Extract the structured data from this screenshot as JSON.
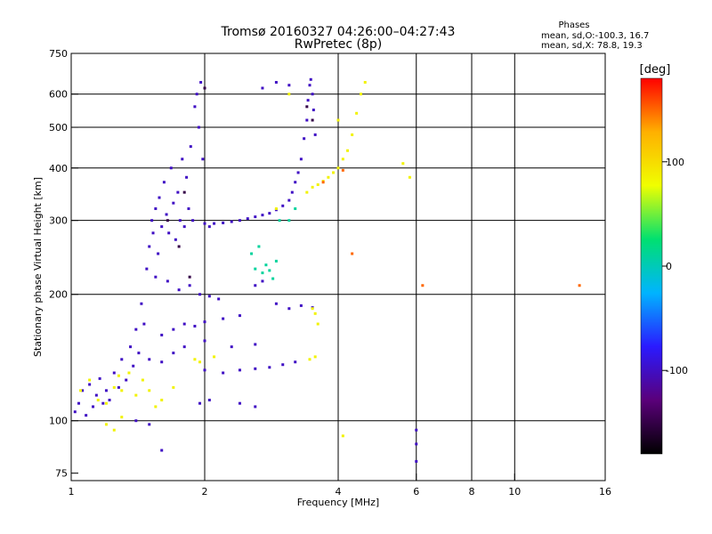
{
  "chart_data": {
    "type": "scatter",
    "title": "Tromsø 20160327 04:26:00–04:27:43",
    "subtitle": "RwPretec (8p)",
    "xlabel": "Frequency [MHz]",
    "ylabel": "Stationary phase Virtual Height [km]",
    "x_scale": "log",
    "y_scale": "log",
    "xlim": [
      1,
      16
    ],
    "ylim": [
      72,
      750
    ],
    "x_ticks": [
      1,
      2,
      4,
      6,
      8,
      10,
      16
    ],
    "y_ticks": [
      75,
      100,
      200,
      300,
      400,
      500,
      600,
      750
    ],
    "grid_x": [
      2,
      4,
      6,
      8,
      10
    ],
    "grid_y": [
      100,
      200,
      300,
      400,
      500,
      600
    ],
    "grid": true,
    "legend": {
      "heading": "Phases",
      "lines": [
        "mean, sd,O:-100.3, 16.7",
        "mean, sd,X:  78.8, 19.3"
      ]
    },
    "colorbar": {
      "label": "[deg]",
      "range": [
        -180,
        180
      ],
      "ticks": [
        100,
        0,
        -100
      ],
      "colors": [
        "#000000",
        "#5a007a",
        "#2a1aff",
        "#00b4ff",
        "#00e070",
        "#f0ff00",
        "#ffb000",
        "#ff0000"
      ]
    },
    "series": [
      {
        "color_deg": -100,
        "points": [
          [
            1.02,
            105
          ],
          [
            1.04,
            110
          ],
          [
            1.06,
            118
          ],
          [
            1.08,
            103
          ],
          [
            1.1,
            122
          ],
          [
            1.12,
            108
          ],
          [
            1.14,
            115
          ],
          [
            1.16,
            126
          ],
          [
            1.18,
            110
          ],
          [
            1.2,
            118
          ],
          [
            1.22,
            112
          ],
          [
            1.25,
            130
          ],
          [
            1.28,
            120
          ],
          [
            1.3,
            140
          ],
          [
            1.33,
            125
          ],
          [
            1.36,
            150
          ],
          [
            1.38,
            135
          ],
          [
            1.4,
            165
          ],
          [
            1.42,
            145
          ],
          [
            1.44,
            190
          ],
          [
            1.46,
            170
          ],
          [
            1.48,
            230
          ],
          [
            1.5,
            260
          ],
          [
            1.52,
            300
          ],
          [
            1.53,
            280
          ],
          [
            1.55,
            320
          ],
          [
            1.57,
            250
          ],
          [
            1.58,
            340
          ],
          [
            1.6,
            290
          ],
          [
            1.62,
            370
          ],
          [
            1.64,
            310
          ],
          [
            1.66,
            280
          ],
          [
            1.68,
            400
          ],
          [
            1.7,
            330
          ],
          [
            1.72,
            270
          ],
          [
            1.74,
            350
          ],
          [
            1.76,
            300
          ],
          [
            1.78,
            420
          ],
          [
            1.8,
            290
          ],
          [
            1.82,
            380
          ],
          [
            1.84,
            320
          ],
          [
            1.86,
            450
          ],
          [
            1.88,
            300
          ],
          [
            1.9,
            560
          ],
          [
            1.92,
            600
          ],
          [
            1.94,
            500
          ],
          [
            1.96,
            640
          ],
          [
            1.98,
            420
          ],
          [
            2.0,
            295
          ],
          [
            2.05,
            290
          ],
          [
            2.1,
            295
          ],
          [
            2.2,
            296
          ],
          [
            2.3,
            298
          ],
          [
            2.4,
            300
          ],
          [
            2.5,
            303
          ],
          [
            2.6,
            306
          ],
          [
            2.7,
            309
          ],
          [
            2.8,
            312
          ],
          [
            2.9,
            318
          ],
          [
            3.0,
            325
          ],
          [
            3.1,
            335
          ],
          [
            3.15,
            350
          ],
          [
            3.2,
            370
          ],
          [
            3.25,
            390
          ],
          [
            3.3,
            420
          ],
          [
            3.35,
            470
          ],
          [
            3.4,
            520
          ],
          [
            3.42,
            580
          ],
          [
            3.45,
            630
          ],
          [
            3.47,
            650
          ],
          [
            3.5,
            600
          ],
          [
            3.52,
            550
          ],
          [
            3.55,
            480
          ],
          [
            1.55,
            220
          ],
          [
            1.65,
            215
          ],
          [
            1.75,
            205
          ],
          [
            1.85,
            210
          ],
          [
            1.95,
            200
          ],
          [
            2.05,
            198
          ],
          [
            2.15,
            195
          ],
          [
            1.6,
            160
          ],
          [
            1.7,
            165
          ],
          [
            1.8,
            170
          ],
          [
            1.9,
            168
          ],
          [
            2.0,
            172
          ],
          [
            2.2,
            175
          ],
          [
            2.4,
            178
          ],
          [
            1.5,
            140
          ],
          [
            1.6,
            138
          ],
          [
            1.7,
            145
          ],
          [
            1.8,
            150
          ],
          [
            2.0,
            155
          ],
          [
            2.3,
            150
          ],
          [
            2.6,
            152
          ],
          [
            2.0,
            132
          ],
          [
            2.2,
            130
          ],
          [
            2.4,
            132
          ],
          [
            2.6,
            133
          ],
          [
            2.8,
            134
          ],
          [
            3.0,
            136
          ],
          [
            3.2,
            138
          ],
          [
            2.9,
            190
          ],
          [
            3.1,
            185
          ],
          [
            3.3,
            188
          ],
          [
            3.5,
            186
          ],
          [
            2.6,
            210
          ],
          [
            2.7,
            215
          ],
          [
            1.4,
            100
          ],
          [
            1.5,
            98
          ],
          [
            1.95,
            110
          ],
          [
            2.05,
            112
          ],
          [
            2.4,
            110
          ],
          [
            2.6,
            108
          ],
          [
            1.6,
            85
          ],
          [
            6.0,
            80
          ],
          [
            6.0,
            88
          ],
          [
            6.0,
            95
          ],
          [
            2.7,
            620
          ],
          [
            2.9,
            640
          ],
          [
            3.1,
            630
          ]
        ]
      },
      {
        "color_deg": 85,
        "points": [
          [
            1.05,
            118
          ],
          [
            1.1,
            125
          ],
          [
            1.15,
            112
          ],
          [
            1.2,
            110
          ],
          [
            1.25,
            120
          ],
          [
            1.28,
            128
          ],
          [
            1.3,
            118
          ],
          [
            1.35,
            130
          ],
          [
            1.4,
            115
          ],
          [
            1.45,
            125
          ],
          [
            1.5,
            118
          ],
          [
            1.55,
            108
          ],
          [
            1.6,
            112
          ],
          [
            1.7,
            120
          ],
          [
            1.9,
            140
          ],
          [
            1.95,
            138
          ],
          [
            2.1,
            142
          ],
          [
            1.2,
            98
          ],
          [
            1.25,
            95
          ],
          [
            1.3,
            102
          ],
          [
            3.4,
            350
          ],
          [
            3.5,
            360
          ],
          [
            3.6,
            365
          ],
          [
            3.7,
            372
          ],
          [
            3.8,
            380
          ],
          [
            3.9,
            390
          ],
          [
            4.0,
            400
          ],
          [
            4.1,
            420
          ],
          [
            4.2,
            440
          ],
          [
            4.3,
            480
          ],
          [
            4.4,
            540
          ],
          [
            4.5,
            600
          ],
          [
            4.6,
            640
          ],
          [
            3.5,
            185
          ],
          [
            3.55,
            180
          ],
          [
            3.6,
            170
          ],
          [
            3.45,
            140
          ],
          [
            3.55,
            142
          ],
          [
            4.1,
            92
          ],
          [
            5.6,
            410
          ],
          [
            5.8,
            380
          ],
          [
            3.1,
            600
          ],
          [
            2.9,
            320
          ],
          [
            4.0,
            520
          ]
        ]
      },
      {
        "color_deg": 10,
        "points": [
          [
            2.6,
            230
          ],
          [
            2.7,
            225
          ],
          [
            2.75,
            235
          ],
          [
            2.8,
            228
          ],
          [
            2.9,
            240
          ],
          [
            2.65,
            260
          ],
          [
            2.55,
            250
          ],
          [
            2.85,
            218
          ],
          [
            3.1,
            300
          ],
          [
            3.2,
            320
          ],
          [
            2.95,
            300
          ]
        ]
      },
      {
        "color_deg": 150,
        "points": [
          [
            4.3,
            250
          ],
          [
            3.7,
            370
          ],
          [
            4.1,
            395
          ],
          [
            6.2,
            210
          ],
          [
            14.0,
            210
          ]
        ]
      },
      {
        "color_deg": -150,
        "points": [
          [
            1.65,
            300
          ],
          [
            1.75,
            260
          ],
          [
            1.85,
            220
          ],
          [
            1.8,
            350
          ],
          [
            3.4,
            560
          ],
          [
            3.5,
            520
          ],
          [
            2.0,
            620
          ]
        ]
      }
    ]
  }
}
